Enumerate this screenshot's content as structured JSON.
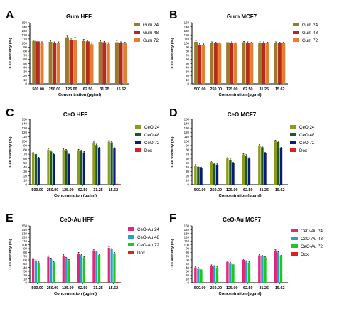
{
  "chart_data": [
    {
      "panel_letter": "A",
      "title": "Gum HFF",
      "type": "bar",
      "categories": [
        "500.00",
        "250.00",
        "125.00",
        "62.50",
        "31.25",
        "15.62"
      ],
      "xlabel": "Concentration (µg/ml)",
      "ylabel": "Cell viability (%)",
      "ylim": [
        0,
        150
      ],
      "yticks": [
        0,
        10,
        20,
        30,
        40,
        50,
        60,
        70,
        80,
        90,
        100,
        110,
        120,
        130,
        140,
        150
      ],
      "legend_position": "right",
      "series": [
        {
          "name": "Gum 24",
          "color": "#9c7a2c",
          "values": [
            105,
            103,
            114,
            105,
            103,
            102
          ],
          "errors": [
            2,
            3,
            5,
            4,
            3,
            3
          ]
        },
        {
          "name": "Gum 48",
          "color": "#b32a1e",
          "values": [
            104,
            101,
            108,
            104,
            102,
            100
          ],
          "errors": [
            3,
            2,
            4,
            3,
            2,
            3
          ]
        },
        {
          "name": "Gum 72",
          "color": "#e67e2e",
          "values": [
            100,
            100,
            108,
            97,
            98,
            100
          ],
          "errors": [
            3,
            3,
            6,
            4,
            3,
            2
          ]
        }
      ]
    },
    {
      "panel_letter": "B",
      "title": "Gum MCF7",
      "type": "bar",
      "categories": [
        "500.00",
        "250.00",
        "125.00",
        "62.50",
        "31.25",
        "15.62"
      ],
      "xlabel": "Concentration (µg/ml)",
      "ylabel": "Cell viability (%)",
      "ylim": [
        0,
        150
      ],
      "yticks": [
        0,
        10,
        20,
        30,
        40,
        50,
        60,
        70,
        80,
        90,
        100,
        110,
        120,
        130,
        140,
        150
      ],
      "legend_position": "right",
      "series": [
        {
          "name": "Gum 24",
          "color": "#9c7a2c",
          "values": [
            103,
            101,
            102,
            102,
            101,
            101
          ],
          "errors": [
            2,
            2,
            5,
            2,
            2,
            2
          ]
        },
        {
          "name": "Gum 48",
          "color": "#b32a1e",
          "values": [
            96,
            100,
            100,
            101,
            101,
            100
          ],
          "errors": [
            3,
            2,
            3,
            2,
            2,
            2
          ]
        },
        {
          "name": "Gum 72",
          "color": "#e67e2e",
          "values": [
            96,
            99,
            99,
            100,
            100,
            100
          ],
          "errors": [
            2,
            2,
            2,
            2,
            2,
            2
          ]
        }
      ]
    },
    {
      "panel_letter": "C",
      "title": "CeO HFF",
      "type": "bar",
      "categories": [
        "500.00",
        "250.00",
        "125.00",
        "62.50",
        "31.25",
        "15.62"
      ],
      "xlabel": "Concentration (µg/ml)",
      "ylabel": "Cell viability (%)",
      "ylim": [
        0,
        150
      ],
      "yticks": [
        0,
        10,
        20,
        30,
        40,
        50,
        60,
        70,
        80,
        90,
        100,
        110,
        120,
        130,
        140,
        150
      ],
      "legend_position": "right",
      "series": [
        {
          "name": "CeO 24",
          "color": "#8a9a1a",
          "values": [
            72,
            80,
            80,
            79,
            95,
            99
          ],
          "errors": [
            2,
            3,
            3,
            2,
            3,
            2
          ]
        },
        {
          "name": "CeO 48",
          "color": "#1e5c1e",
          "values": [
            70,
            76,
            79,
            77,
            91,
            97
          ],
          "errors": [
            2,
            2,
            2,
            2,
            2,
            2
          ]
        },
        {
          "name": "CeO 72",
          "color": "#0a1a78",
          "values": [
            61,
            70,
            70,
            74,
            84,
            83
          ],
          "errors": [
            2,
            2,
            2,
            2,
            2,
            2
          ]
        },
        {
          "name": "Dox",
          "color": "#e02020",
          "values": [
            0,
            0,
            0,
            0,
            0,
            2
          ],
          "errors": [
            0,
            0,
            0,
            0,
            0,
            0
          ]
        }
      ]
    },
    {
      "panel_letter": "D",
      "title": "CeO MCF7",
      "type": "bar",
      "categories": [
        "500.00",
        "250.00",
        "125.00",
        "62.50",
        "31.25",
        "15.62"
      ],
      "xlabel": "Concentration (µg/ml)",
      "ylabel": "Cell viability (%)",
      "ylim": [
        0,
        150
      ],
      "yticks": [
        0,
        10,
        20,
        30,
        40,
        50,
        60,
        70,
        80,
        90,
        100,
        110,
        120,
        130,
        140,
        150
      ],
      "legend_position": "right",
      "series": [
        {
          "name": "CeO 24",
          "color": "#8a9a1a",
          "values": [
            44,
            52,
            60,
            69,
            90,
            100
          ],
          "errors": [
            2,
            2,
            2,
            2,
            2,
            2
          ]
        },
        {
          "name": "CeO 48",
          "color": "#1e5c1e",
          "values": [
            41,
            48,
            57,
            67,
            86,
            98
          ],
          "errors": [
            2,
            2,
            2,
            2,
            2,
            2
          ]
        },
        {
          "name": "CeO 72",
          "color": "#0a1a78",
          "values": [
            38,
            46,
            49,
            60,
            72,
            84
          ],
          "errors": [
            2,
            2,
            2,
            2,
            2,
            2
          ]
        },
        {
          "name": "Dox",
          "color": "#e02020",
          "values": [
            0,
            0,
            0,
            0,
            0,
            0
          ],
          "errors": [
            0,
            0,
            0,
            0,
            0,
            0
          ]
        }
      ]
    },
    {
      "panel_letter": "E",
      "title": "CeO-Au HFF",
      "type": "bar",
      "categories": [
        "500.00",
        "250.00",
        "125.00",
        "62.50",
        "31.25",
        "15.62"
      ],
      "xlabel": "Concentration (µg/ml)",
      "ylabel": "Cell viability (%)",
      "ylim": [
        0,
        150
      ],
      "yticks": [
        0,
        10,
        20,
        30,
        40,
        50,
        60,
        70,
        80,
        90,
        100,
        110,
        120,
        130,
        140,
        150
      ],
      "legend_position": "right",
      "series": [
        {
          "name": "CeO-Au 24",
          "color": "#e0287a",
          "values": [
            62,
            68,
            71,
            77,
            85,
            92
          ],
          "errors": [
            3,
            3,
            3,
            3,
            3,
            3
          ]
        },
        {
          "name": "CeO-Au 48",
          "color": "#2aa0c8",
          "values": [
            58,
            63,
            65,
            73,
            82,
            88
          ],
          "errors": [
            2,
            2,
            2,
            2,
            2,
            2
          ]
        },
        {
          "name": "CeO-Au 72",
          "color": "#22c622",
          "values": [
            53,
            54,
            59,
            67,
            73,
            78
          ],
          "errors": [
            2,
            2,
            2,
            2,
            2,
            2
          ]
        },
        {
          "name": "Dox",
          "color": "#e02020",
          "values": [
            0,
            0,
            0,
            0,
            0,
            2
          ],
          "errors": [
            0,
            0,
            0,
            0,
            0,
            0
          ]
        }
      ]
    },
    {
      "panel_letter": "F",
      "title": "CeO-Au MCF7",
      "type": "bar",
      "categories": [
        "500.00",
        "250.00",
        "125.00",
        "62.50",
        "31.25",
        "15.62"
      ],
      "xlabel": "Concentration (µg/ml)",
      "ylabel": "Cell viability (%)",
      "ylim": [
        0,
        150
      ],
      "yticks": [
        0,
        10,
        20,
        30,
        40,
        50,
        60,
        70,
        80,
        90,
        100,
        110,
        120,
        130,
        140,
        150
      ],
      "legend_position": "right",
      "series": [
        {
          "name": "CeO-Au 24",
          "color": "#e0287a",
          "values": [
            40,
            45,
            55,
            60,
            72,
            85
          ],
          "errors": [
            2,
            2,
            2,
            2,
            2,
            2
          ]
        },
        {
          "name": "CeO-Au 48",
          "color": "#2aa0c8",
          "values": [
            38,
            43,
            52,
            56,
            70,
            80
          ],
          "errors": [
            2,
            2,
            2,
            2,
            2,
            2
          ]
        },
        {
          "name": "CeO-Au 72",
          "color": "#22c622",
          "values": [
            34,
            40,
            48,
            53,
            67,
            70
          ],
          "errors": [
            2,
            2,
            2,
            2,
            2,
            2
          ]
        },
        {
          "name": "Dox",
          "color": "#e02020",
          "values": [
            0,
            0,
            0,
            0,
            0,
            0
          ],
          "errors": [
            0,
            0,
            0,
            0,
            0,
            0
          ]
        }
      ]
    }
  ]
}
